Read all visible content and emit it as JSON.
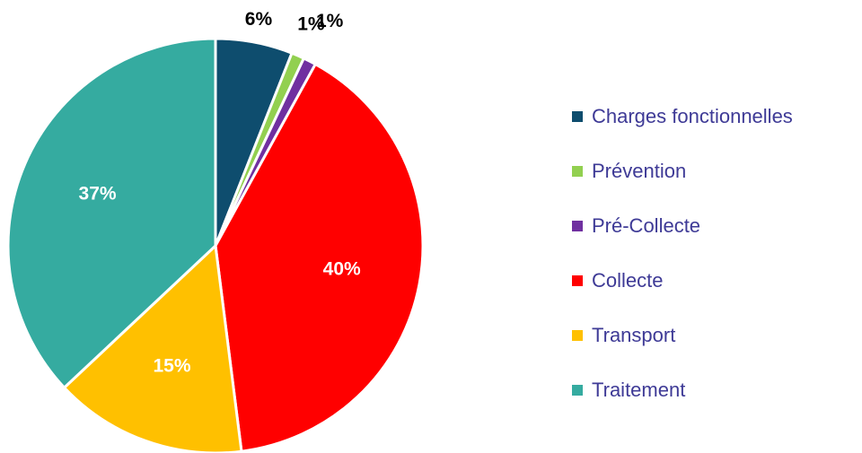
{
  "chart_data": {
    "type": "pie",
    "categories": [
      "Charges fonctionnelles",
      "Prévention",
      "Pré-Collecte",
      "Collecte",
      "Transport",
      "Traitement"
    ],
    "values": [
      6,
      1,
      1,
      40,
      15,
      37
    ],
    "value_labels": [
      "6%",
      "1%",
      "1%",
      "40%",
      "15%",
      "37%"
    ],
    "colors": [
      "#0e4d6e",
      "#92d050",
      "#7030a0",
      "#ff0000",
      "#ffc000",
      "#35aba0"
    ],
    "legend": "right"
  }
}
